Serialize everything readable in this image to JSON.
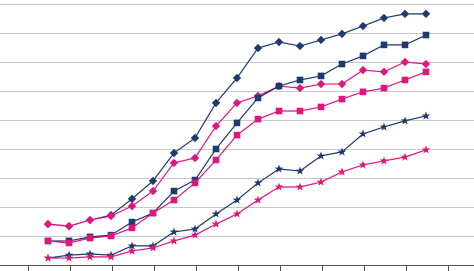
{
  "chart_data": {
    "type": "line",
    "categories": [
      null,
      null,
      null,
      null,
      null,
      null,
      null,
      null,
      null,
      null,
      null,
      null,
      null,
      null,
      null,
      null,
      null,
      null,
      null
    ],
    "ylim": [
      0,
      9
    ],
    "yticks": [
      1,
      2,
      3,
      4,
      5,
      6,
      7,
      8,
      9
    ],
    "grid": true,
    "series": [
      {
        "color": "#1f3a6e",
        "marker": "diamond",
        "values": [
          1.41,
          1.34,
          1.55,
          1.72,
          2.28,
          2.9,
          3.86,
          4.38,
          5.59,
          6.45,
          7.48,
          7.69,
          7.55,
          7.76,
          7.97,
          8.24,
          8.52,
          8.66,
          8.66
        ]
      },
      {
        "color": "#e0157e",
        "marker": "diamond",
        "values": [
          1.41,
          1.34,
          1.55,
          1.69,
          2.03,
          2.55,
          3.52,
          3.69,
          4.79,
          5.59,
          5.83,
          6.17,
          6.1,
          6.24,
          6.24,
          6.72,
          6.66,
          7,
          6.93
        ]
      },
      {
        "color": "#1f3a6e",
        "marker": "square",
        "values": [
          0.83,
          0.83,
          0.97,
          1.03,
          1.48,
          1.79,
          2.55,
          2.93,
          4,
          4.9,
          5.76,
          6.17,
          6.38,
          6.52,
          6.93,
          7.21,
          7.59,
          7.59,
          7.93
        ]
      },
      {
        "color": "#e0157e",
        "marker": "square",
        "values": [
          0.83,
          0.76,
          0.93,
          1,
          1.28,
          1.79,
          2.24,
          2.83,
          3.62,
          4.48,
          5.03,
          5.31,
          5.31,
          5.45,
          5.72,
          5.97,
          6.1,
          6.38,
          6.66
        ]
      },
      {
        "color": "#1f3a6e",
        "marker": "star",
        "values": [
          0.24,
          0.34,
          0.38,
          0.34,
          0.66,
          0.66,
          1.14,
          1.24,
          1.76,
          2.24,
          2.83,
          3.31,
          3.24,
          3.76,
          3.9,
          4.52,
          4.76,
          4.97,
          5.14
        ]
      },
      {
        "color": "#e0157e",
        "marker": "star",
        "values": [
          0.24,
          0.24,
          0.28,
          0.28,
          0.48,
          0.59,
          0.83,
          1.03,
          1.41,
          1.76,
          2.24,
          2.69,
          2.69,
          2.86,
          3.21,
          3.45,
          3.59,
          3.72,
          3.97
        ]
      }
    ]
  }
}
